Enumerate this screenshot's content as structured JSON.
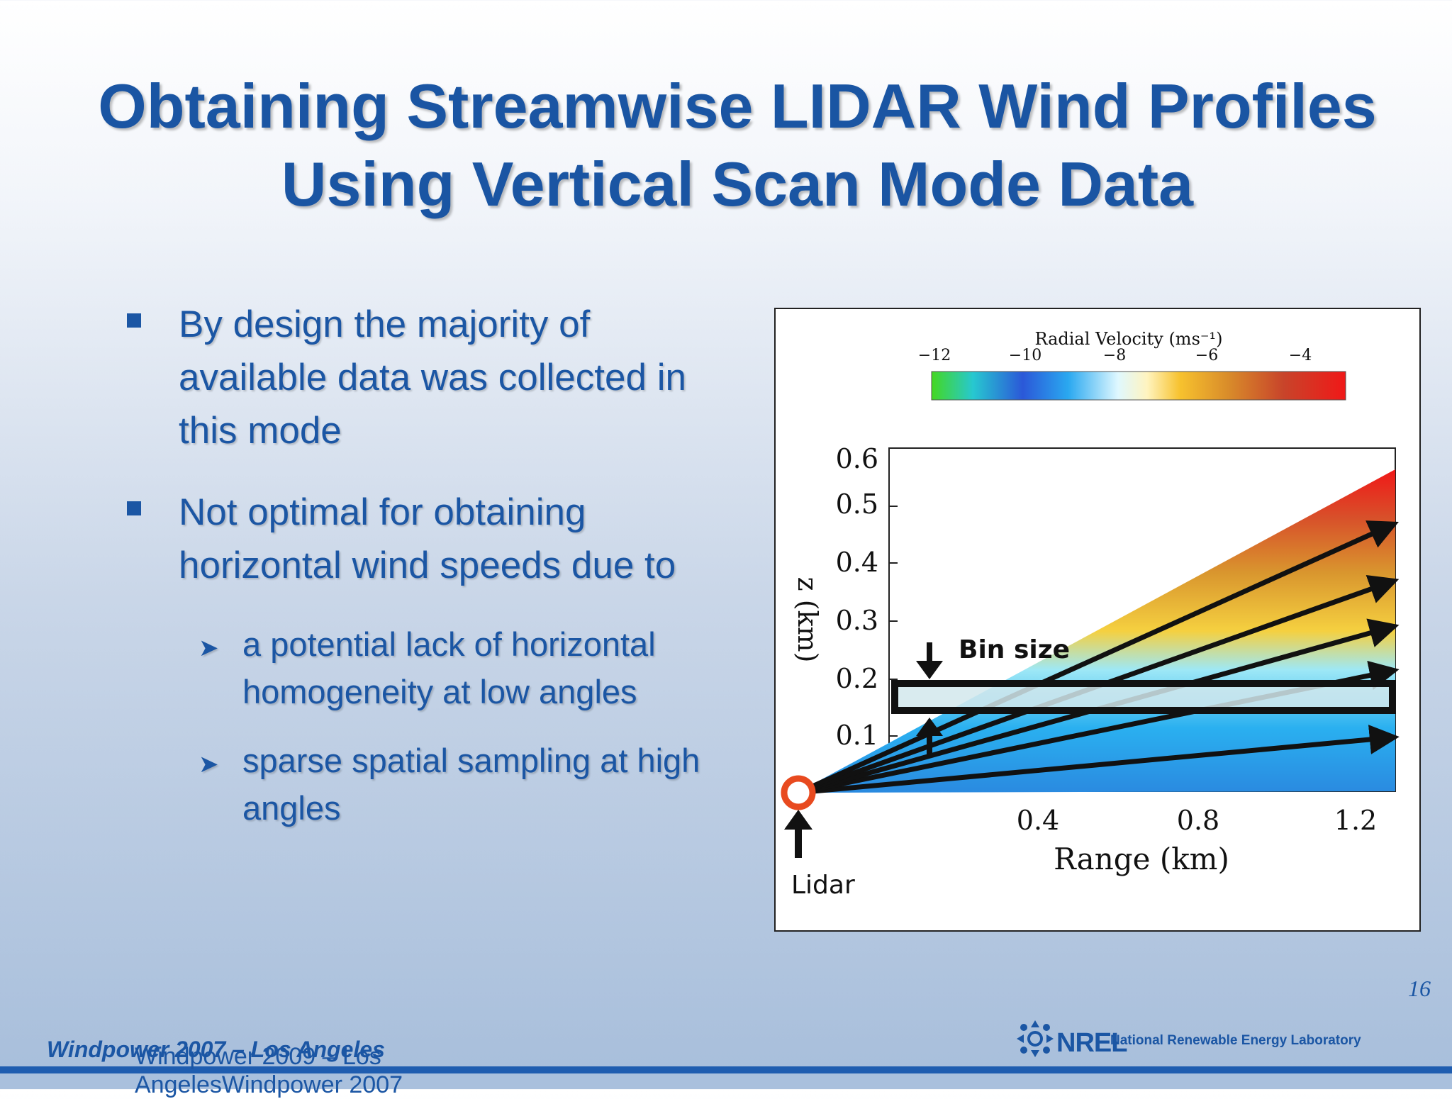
{
  "slide": {
    "title": "Obtaining Streamwise LIDAR Wind Profiles Using Vertical Scan Mode Data",
    "bullets": [
      "By design the majority of available data was collected in this mode",
      "Not optimal for obtaining horizontal wind speeds due to"
    ],
    "sub_bullets": [
      "a potential lack of horizontal homogeneity at low angles",
      "sparse spatial sampling at high angles"
    ],
    "page_number": "16",
    "footer_left": "Windpower 2007 – Los Angeles",
    "footer_overlap": "Windpower 2009 – Los AngelesWindpower 2007",
    "logo_text": "NREL",
    "logo_full": "National Renewable Energy Laboratory"
  },
  "figure": {
    "colorbar_title": "Radial Velocity (ms⁻¹)",
    "colorbar_ticks": [
      "−12",
      "−10",
      "−8",
      "−6",
      "−4"
    ],
    "y_axis_label": "z (km)",
    "y_ticks": [
      "0.6",
      "0.5",
      "0.4",
      "0.3",
      "0.2",
      "0.1"
    ],
    "x_axis_label": "Range (km)",
    "x_ticks": [
      "0.4",
      "0.8",
      "1.2"
    ],
    "bin_label": "Bin size",
    "lidar_label": "Lidar"
  }
}
